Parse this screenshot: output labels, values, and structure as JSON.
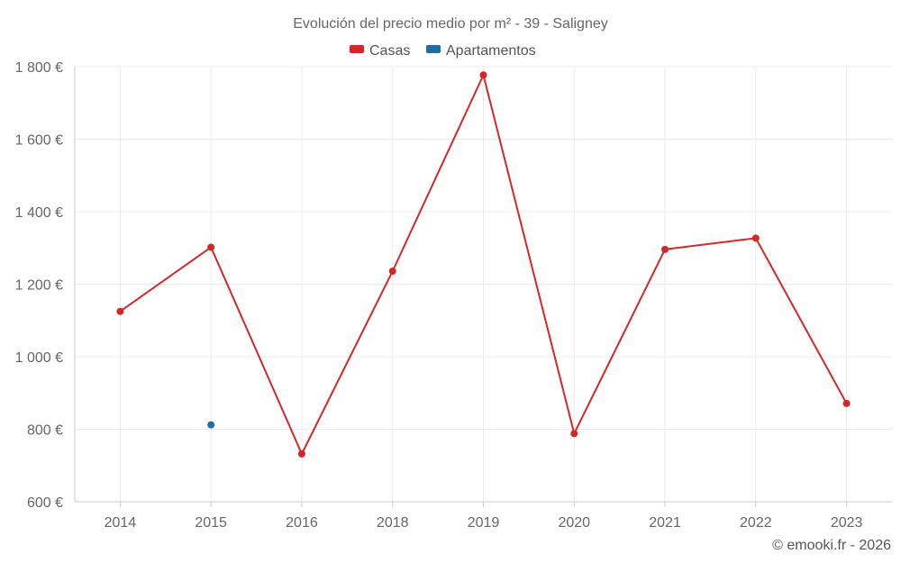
{
  "chart_data": {
    "type": "line",
    "title": "Evolución del precio medio por m² - 39 - Saligney",
    "categories": [
      "2014",
      "2015",
      "2016",
      "2018",
      "2019",
      "2020",
      "2021",
      "2022",
      "2023"
    ],
    "series": [
      {
        "name": "Casas",
        "color": "#d62728",
        "values": [
          1125,
          1302,
          732,
          1236,
          1777,
          788,
          1296,
          1327,
          871
        ]
      },
      {
        "name": "Apartamentos",
        "color": "#1f6ea3",
        "values": [
          null,
          812,
          null,
          null,
          null,
          null,
          null,
          null,
          null
        ]
      }
    ],
    "ylim": [
      600,
      1800
    ],
    "yticks": [
      "600 €",
      "800 €",
      "1 000 €",
      "1 200 €",
      "1 400 €",
      "1 600 €",
      "1 800 €"
    ],
    "ytick_values": [
      600,
      800,
      1000,
      1200,
      1400,
      1600,
      1800
    ],
    "grid": true,
    "legend": "top-center"
  },
  "credit": "© emooki.fr - 2026"
}
